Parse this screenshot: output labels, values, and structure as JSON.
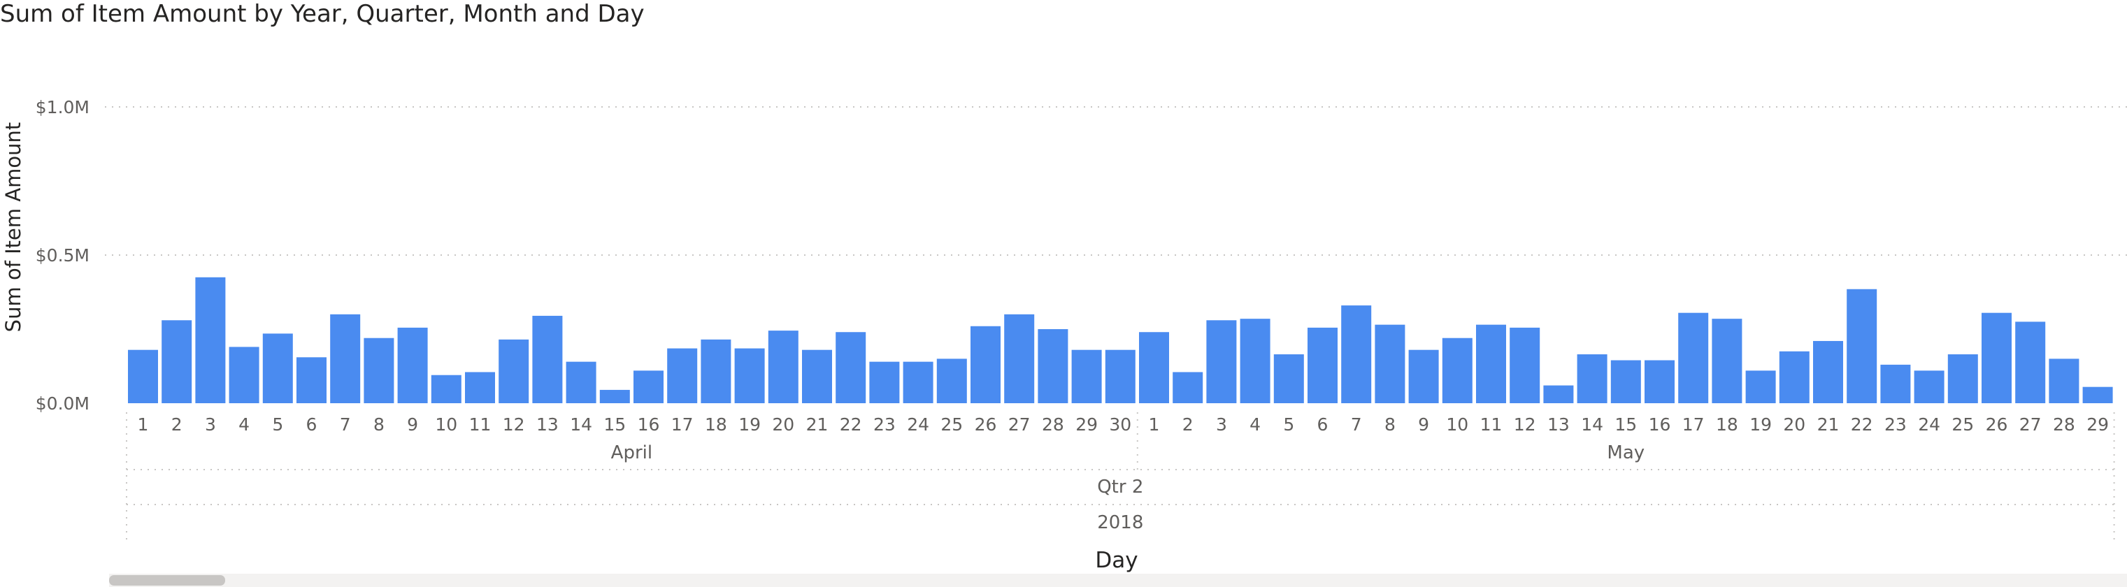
{
  "chart_data": {
    "type": "bar",
    "title": "Sum of Item Amount by Year, Quarter, Month and Day",
    "ylabel": "Sum of Item Amount",
    "xlabel": "Day",
    "ylim": [
      0,
      1000000
    ],
    "y_ticks": [
      "$0.0M",
      "$0.5M",
      "$1.0M"
    ],
    "grid": true,
    "color": "#4a8bf0",
    "hierarchy": {
      "year": "2018",
      "quarter": "Qtr 2",
      "months": [
        {
          "name": "April",
          "days": [
            "1",
            "2",
            "3",
            "4",
            "5",
            "6",
            "7",
            "8",
            "9",
            "10",
            "11",
            "12",
            "13",
            "14",
            "15",
            "16",
            "17",
            "18",
            "19",
            "20",
            "21",
            "22",
            "23",
            "24",
            "25",
            "26",
            "27",
            "28",
            "29",
            "30"
          ]
        },
        {
          "name": "May",
          "days": [
            "1",
            "2",
            "3",
            "4",
            "5",
            "6",
            "7",
            "8",
            "9",
            "10",
            "11",
            "12",
            "13",
            "14",
            "15",
            "16",
            "17",
            "18",
            "19",
            "20",
            "21",
            "22",
            "23",
            "24",
            "25",
            "26",
            "27",
            "28",
            "29"
          ]
        }
      ]
    },
    "series": [
      {
        "values": [
          180000,
          280000,
          425000,
          190000,
          235000,
          155000,
          300000,
          220000,
          255000,
          95000,
          105000,
          215000,
          295000,
          140000,
          45000,
          110000,
          185000,
          215000,
          185000,
          245000,
          180000,
          240000,
          140000,
          140000,
          150000,
          260000,
          300000,
          250000,
          180000,
          180000,
          240000,
          105000,
          280000,
          285000,
          165000,
          255000,
          330000,
          265000,
          180000,
          220000,
          265000,
          255000,
          60000,
          165000,
          145000,
          145000,
          305000,
          285000,
          110000,
          175000,
          210000,
          385000,
          130000,
          110000,
          165000,
          305000,
          275000,
          150000,
          55000
        ]
      }
    ],
    "scrollbar": true
  }
}
